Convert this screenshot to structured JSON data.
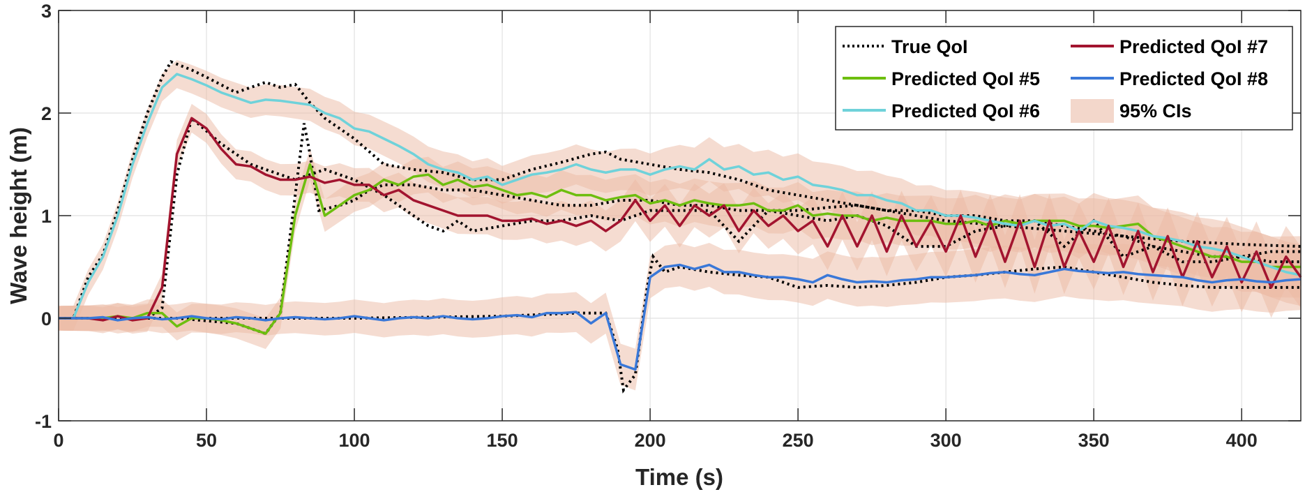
{
  "chart_data": {
    "type": "line",
    "xlabel": "Time (s)",
    "ylabel": "Wave height (m)",
    "xlim": [
      0,
      420
    ],
    "ylim": [
      -1,
      3
    ],
    "xticks": [
      "0",
      "50",
      "100",
      "150",
      "200",
      "250",
      "300",
      "350",
      "400"
    ],
    "yticks": [
      "-1",
      "0",
      "1",
      "2",
      "3"
    ],
    "grid": true,
    "legend": {
      "placement": "top-right",
      "entries": [
        "True QoI",
        "Predicted QoI #5",
        "Predicted QoI #6",
        "Predicted QoI #7",
        "Predicted QoI #8",
        "95% CIs"
      ]
    },
    "colors": {
      "true": "#000000",
      "qoi5": "#6DBE0F",
      "qoi6": "#6FD2DA",
      "qoi7": "#A2142F",
      "qoi8": "#3A78D8",
      "ci": "#EBB9A3"
    },
    "x": [
      0,
      5,
      10,
      15,
      20,
      25,
      30,
      35,
      40,
      45,
      50,
      55,
      60,
      65,
      70,
      75,
      80,
      85,
      90,
      95,
      100,
      105,
      110,
      115,
      120,
      125,
      130,
      135,
      140,
      145,
      150,
      155,
      160,
      165,
      170,
      175,
      180,
      185,
      190,
      195,
      200,
      205,
      210,
      215,
      220,
      225,
      230,
      235,
      240,
      245,
      250,
      255,
      260,
      265,
      270,
      275,
      280,
      285,
      290,
      295,
      300,
      305,
      310,
      315,
      320,
      325,
      330,
      335,
      340,
      345,
      350,
      355,
      360,
      365,
      370,
      375,
      380,
      385,
      390,
      395,
      400,
      405,
      410,
      415,
      420
    ],
    "series": [
      {
        "name": "Predicted QoI #5",
        "key": "qoi5",
        "ci_halfwidth": [
          0.12,
          0.3
        ],
        "values": [
          0,
          0,
          0,
          0,
          0.02,
          0,
          0.05,
          0.05,
          -0.08,
          0,
          0,
          -0.02,
          -0.05,
          -0.1,
          -0.15,
          0.05,
          1.0,
          1.5,
          1.0,
          1.1,
          1.2,
          1.25,
          1.35,
          1.3,
          1.38,
          1.4,
          1.3,
          1.35,
          1.28,
          1.3,
          1.25,
          1.2,
          1.22,
          1.18,
          1.25,
          1.2,
          1.2,
          1.15,
          1.18,
          1.2,
          1.12,
          1.15,
          1.1,
          1.15,
          1.12,
          1.1,
          1.1,
          1.12,
          1.05,
          1.05,
          1.1,
          1.0,
          1.02,
          1.0,
          1.0,
          0.95,
          0.98,
          0.95,
          0.95,
          0.95,
          0.92,
          0.92,
          0.95,
          0.9,
          0.95,
          0.92,
          0.95,
          0.95,
          0.95,
          0.9,
          0.9,
          0.88,
          0.9,
          0.92,
          0.8,
          0.75,
          0.7,
          0.65,
          0.6,
          0.6,
          0.55,
          0.55,
          0.5,
          0.5,
          0.5
        ]
      },
      {
        "name": "Predicted QoI #6",
        "key": "qoi6",
        "ci_halfwidth": [
          0.12,
          0.3
        ],
        "values": [
          0,
          0,
          0.35,
          0.6,
          1.0,
          1.5,
          1.9,
          2.25,
          2.38,
          2.33,
          2.27,
          2.2,
          2.15,
          2.1,
          2.13,
          2.12,
          2.1,
          2.08,
          2.0,
          1.95,
          1.85,
          1.82,
          1.75,
          1.68,
          1.6,
          1.5,
          1.45,
          1.42,
          1.35,
          1.38,
          1.3,
          1.35,
          1.4,
          1.42,
          1.45,
          1.5,
          1.45,
          1.42,
          1.45,
          1.45,
          1.4,
          1.45,
          1.48,
          1.45,
          1.55,
          1.45,
          1.48,
          1.4,
          1.42,
          1.35,
          1.38,
          1.3,
          1.28,
          1.25,
          1.2,
          1.2,
          1.15,
          1.12,
          1.05,
          1.05,
          1.0,
          1.0,
          0.98,
          0.95,
          0.92,
          0.9,
          0.95,
          0.9,
          0.92,
          0.85,
          0.95,
          0.9,
          0.88,
          0.85,
          0.8,
          0.78,
          0.75,
          0.7,
          0.68,
          0.65,
          0.6,
          0.55,
          0.5,
          0.45,
          0.42
        ]
      },
      {
        "name": "Predicted QoI #7",
        "key": "qoi7",
        "ci_halfwidth": [
          0.12,
          0.3
        ],
        "values": [
          0,
          0,
          0,
          -0.02,
          0.02,
          -0.02,
          0,
          0.3,
          1.6,
          1.95,
          1.85,
          1.65,
          1.5,
          1.48,
          1.4,
          1.35,
          1.35,
          1.38,
          1.32,
          1.35,
          1.3,
          1.3,
          1.2,
          1.25,
          1.15,
          1.1,
          1.05,
          1.0,
          1.0,
          1.0,
          0.95,
          0.95,
          0.97,
          0.92,
          0.95,
          0.9,
          0.95,
          0.85,
          0.95,
          1.15,
          0.95,
          1.1,
          0.9,
          1.1,
          1.0,
          1.1,
          0.85,
          1.05,
          0.9,
          1.0,
          0.85,
          0.95,
          0.7,
          1.0,
          0.7,
          1.0,
          0.65,
          1.0,
          0.7,
          0.95,
          0.65,
          1.0,
          0.6,
          0.95,
          0.55,
          0.95,
          0.5,
          0.95,
          0.5,
          0.85,
          0.55,
          0.9,
          0.5,
          0.85,
          0.45,
          0.8,
          0.4,
          0.75,
          0.4,
          0.7,
          0.35,
          0.65,
          0.3,
          0.6,
          0.4
        ]
      },
      {
        "name": "Predicted QoI #8",
        "key": "qoi8",
        "ci_halfwidth": [
          0.12,
          0.3
        ],
        "values": [
          0,
          0,
          0,
          0.01,
          -0.02,
          0,
          0.01,
          -0.01,
          0,
          0.02,
          0,
          -0.01,
          0.01,
          0,
          -0.02,
          0,
          0.01,
          0,
          -0.01,
          0,
          0.02,
          0,
          -0.02,
          0,
          0.01,
          0,
          0.02,
          0,
          -0.01,
          0,
          0.02,
          0.03,
          0.01,
          0.05,
          0.05,
          0.06,
          -0.05,
          0.05,
          -0.45,
          -0.5,
          0.4,
          0.5,
          0.52,
          0.48,
          0.52,
          0.45,
          0.45,
          0.42,
          0.4,
          0.4,
          0.38,
          0.35,
          0.42,
          0.38,
          0.35,
          0.36,
          0.35,
          0.37,
          0.38,
          0.4,
          0.4,
          0.41,
          0.42,
          0.44,
          0.45,
          0.43,
          0.42,
          0.45,
          0.48,
          0.46,
          0.45,
          0.44,
          0.45,
          0.43,
          0.42,
          0.41,
          0.4,
          0.37,
          0.35,
          0.37,
          0.38,
          0.36,
          0.35,
          0.37,
          0.38
        ]
      }
    ],
    "true_series": [
      {
        "name": "True QoI",
        "gauge": "#5",
        "points": [
          [
            0,
            0
          ],
          [
            20,
            0
          ],
          [
            40,
            0
          ],
          [
            60,
            -0.05
          ],
          [
            70,
            -0.15
          ],
          [
            75,
            0.05
          ],
          [
            80,
            1.2
          ],
          [
            83,
            1.9
          ],
          [
            85,
            1.6
          ],
          [
            88,
            1.05
          ],
          [
            95,
            1.1
          ],
          [
            100,
            1.15
          ],
          [
            105,
            1.25
          ],
          [
            110,
            1.3
          ],
          [
            120,
            1.3
          ],
          [
            130,
            1.25
          ],
          [
            140,
            1.25
          ],
          [
            150,
            1.2
          ],
          [
            160,
            1.15
          ],
          [
            170,
            1.1
          ],
          [
            180,
            1.1
          ],
          [
            190,
            1.15
          ],
          [
            200,
            1.15
          ],
          [
            210,
            1.1
          ],
          [
            220,
            1.1
          ],
          [
            230,
            1.05
          ],
          [
            240,
            1.05
          ],
          [
            250,
            1.05
          ],
          [
            260,
            1.08
          ],
          [
            270,
            1.1
          ],
          [
            280,
            1.05
          ],
          [
            290,
            1.05
          ],
          [
            300,
            1.0
          ],
          [
            310,
            1.0
          ],
          [
            320,
            0.95
          ],
          [
            330,
            0.95
          ],
          [
            340,
            0.9
          ],
          [
            350,
            0.85
          ],
          [
            360,
            0.8
          ],
          [
            370,
            0.7
          ],
          [
            380,
            0.65
          ],
          [
            390,
            0.6
          ],
          [
            400,
            0.6
          ],
          [
            410,
            0.55
          ],
          [
            420,
            0.55
          ]
        ]
      },
      {
        "name": "True QoI",
        "gauge": "#6",
        "points": [
          [
            0,
            0
          ],
          [
            5,
            0
          ],
          [
            10,
            0.4
          ],
          [
            15,
            0.62
          ],
          [
            20,
            1.05
          ],
          [
            25,
            1.55
          ],
          [
            30,
            2.0
          ],
          [
            35,
            2.35
          ],
          [
            38,
            2.5
          ],
          [
            45,
            2.42
          ],
          [
            50,
            2.35
          ],
          [
            60,
            2.2
          ],
          [
            70,
            2.3
          ],
          [
            75,
            2.25
          ],
          [
            80,
            2.28
          ],
          [
            85,
            2.1
          ],
          [
            90,
            1.95
          ],
          [
            100,
            1.75
          ],
          [
            110,
            1.5
          ],
          [
            120,
            1.45
          ],
          [
            130,
            1.42
          ],
          [
            140,
            1.35
          ],
          [
            150,
            1.35
          ],
          [
            160,
            1.45
          ],
          [
            170,
            1.52
          ],
          [
            180,
            1.6
          ],
          [
            185,
            1.62
          ],
          [
            190,
            1.55
          ],
          [
            200,
            1.5
          ],
          [
            210,
            1.45
          ],
          [
            220,
            1.42
          ],
          [
            230,
            1.35
          ],
          [
            240,
            1.25
          ],
          [
            250,
            1.2
          ],
          [
            260,
            1.15
          ],
          [
            270,
            1.1
          ],
          [
            280,
            1.05
          ],
          [
            290,
            1.0
          ],
          [
            300,
            0.95
          ],
          [
            320,
            0.9
          ],
          [
            340,
            0.85
          ],
          [
            360,
            0.8
          ],
          [
            380,
            0.75
          ],
          [
            400,
            0.72
          ],
          [
            420,
            0.7
          ]
        ]
      },
      {
        "name": "True QoI",
        "gauge": "#7",
        "points": [
          [
            0,
            0
          ],
          [
            30,
            0
          ],
          [
            35,
            0.1
          ],
          [
            40,
            1.4
          ],
          [
            45,
            1.95
          ],
          [
            55,
            1.7
          ],
          [
            65,
            1.5
          ],
          [
            80,
            1.35
          ],
          [
            90,
            1.45
          ],
          [
            100,
            1.35
          ],
          [
            110,
            1.2
          ],
          [
            120,
            1.0
          ],
          [
            125,
            0.9
          ],
          [
            130,
            0.85
          ],
          [
            135,
            0.95
          ],
          [
            140,
            0.85
          ],
          [
            150,
            0.9
          ],
          [
            160,
            0.95
          ],
          [
            170,
            0.95
          ],
          [
            180,
            1.0
          ],
          [
            190,
            0.95
          ],
          [
            200,
            1.05
          ],
          [
            210,
            1.05
          ],
          [
            220,
            1.05
          ],
          [
            230,
            0.75
          ],
          [
            240,
            1.05
          ],
          [
            250,
            1.0
          ],
          [
            260,
            0.95
          ],
          [
            270,
            1.0
          ],
          [
            280,
            0.9
          ],
          [
            290,
            0.7
          ],
          [
            300,
            0.7
          ],
          [
            310,
            0.85
          ],
          [
            320,
            0.9
          ],
          [
            330,
            0.95
          ],
          [
            340,
            0.7
          ],
          [
            350,
            0.95
          ],
          [
            360,
            0.6
          ],
          [
            370,
            0.7
          ],
          [
            380,
            0.55
          ],
          [
            390,
            0.55
          ],
          [
            400,
            0.6
          ],
          [
            410,
            0.65
          ],
          [
            420,
            0.65
          ]
        ]
      },
      {
        "name": "True QoI",
        "gauge": "#8",
        "points": [
          [
            0,
            0
          ],
          [
            50,
            0
          ],
          [
            100,
            0
          ],
          [
            150,
            0.02
          ],
          [
            175,
            0.05
          ],
          [
            185,
            0.05
          ],
          [
            189,
            -0.3
          ],
          [
            191,
            -0.7
          ],
          [
            195,
            -0.55
          ],
          [
            199,
            0.3
          ],
          [
            201,
            0.6
          ],
          [
            205,
            0.45
          ],
          [
            210,
            0.5
          ],
          [
            220,
            0.45
          ],
          [
            230,
            0.42
          ],
          [
            240,
            0.4
          ],
          [
            250,
            0.3
          ],
          [
            260,
            0.32
          ],
          [
            270,
            0.3
          ],
          [
            280,
            0.32
          ],
          [
            290,
            0.35
          ],
          [
            300,
            0.4
          ],
          [
            310,
            0.42
          ],
          [
            320,
            0.45
          ],
          [
            330,
            0.48
          ],
          [
            340,
            0.5
          ],
          [
            350,
            0.45
          ],
          [
            360,
            0.4
          ],
          [
            370,
            0.35
          ],
          [
            380,
            0.32
          ],
          [
            390,
            0.3
          ],
          [
            400,
            0.3
          ],
          [
            410,
            0.3
          ],
          [
            420,
            0.3
          ]
        ]
      }
    ]
  }
}
